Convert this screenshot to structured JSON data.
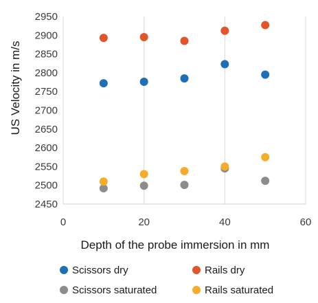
{
  "chart_data": {
    "type": "scatter",
    "xlabel": "Depth of the probe immersion in mm",
    "ylabel": "US Velocity in m/s",
    "xlim": [
      0,
      60
    ],
    "ylim": [
      2450,
      2950
    ],
    "x_ticks": [
      0,
      20,
      40,
      60
    ],
    "y_ticks": [
      2450,
      2500,
      2550,
      2600,
      2650,
      2700,
      2750,
      2800,
      2850,
      2900,
      2950
    ],
    "grid": "vertical",
    "legend_position": "bottom",
    "series": [
      {
        "name": "Scissors dry",
        "color": "#1f6fb6",
        "points": [
          [
            10,
            2772
          ],
          [
            20,
            2776
          ],
          [
            30,
            2785
          ],
          [
            40,
            2823
          ],
          [
            50,
            2795
          ]
        ]
      },
      {
        "name": "Rails dry",
        "color": "#e2552b",
        "points": [
          [
            10,
            2893
          ],
          [
            20,
            2895
          ],
          [
            30,
            2885
          ],
          [
            40,
            2912
          ],
          [
            50,
            2927
          ]
        ]
      },
      {
        "name": "Scissors saturated",
        "color": "#8c8c8c",
        "points": [
          [
            10,
            2492
          ],
          [
            20,
            2499
          ],
          [
            30,
            2501
          ],
          [
            40,
            2545
          ],
          [
            50,
            2512
          ]
        ]
      },
      {
        "name": "Rails saturated",
        "color": "#f5ac2a",
        "points": [
          [
            10,
            2510
          ],
          [
            20,
            2530
          ],
          [
            30,
            2538
          ],
          [
            40,
            2550
          ],
          [
            50,
            2575
          ]
        ]
      }
    ]
  }
}
